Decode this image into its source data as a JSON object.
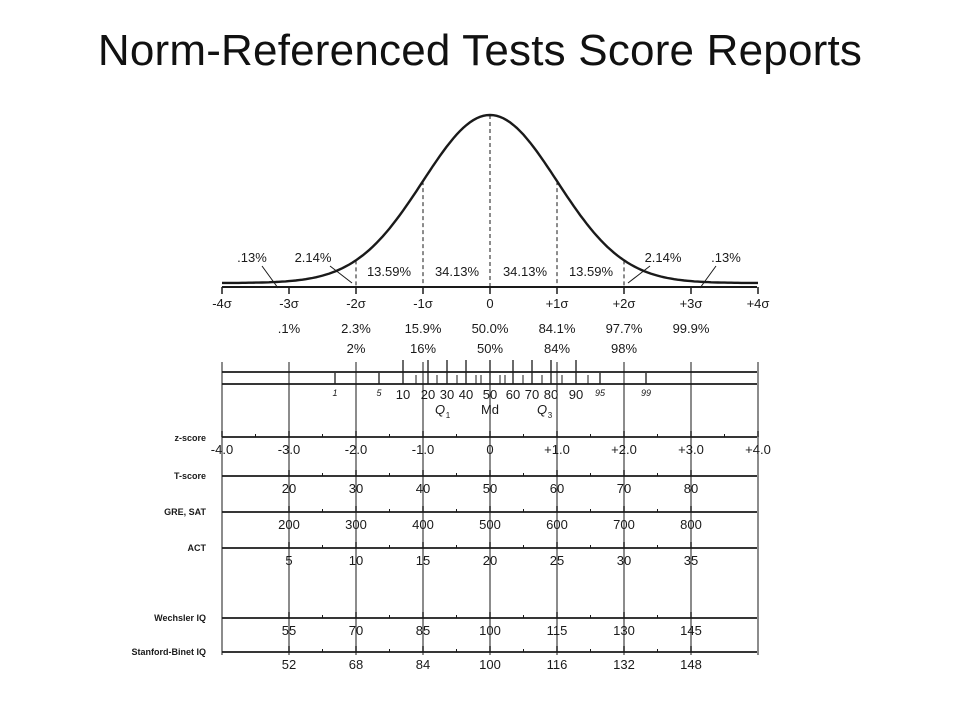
{
  "slide": {
    "title": "Norm-Referenced Tests Score Reports"
  },
  "curve": {
    "area_percents": [
      ".13%",
      "2.14%",
      "13.59%",
      "34.13%",
      "34.13%",
      "13.59%",
      "2.14%",
      ".13%"
    ],
    "sigma_labels": [
      "-4σ",
      "-3σ",
      "-2σ",
      "-1σ",
      "0",
      "+1σ",
      "+2σ",
      "+3σ",
      "+4σ"
    ],
    "cumulative_percent": [
      ".1%",
      "2.3%",
      "15.9%",
      "50.0%",
      "84.1%",
      "97.7%",
      "99.9%"
    ],
    "cumulative_rounded": [
      "2%",
      "16%",
      "50%",
      "84%",
      "98%"
    ]
  },
  "percentile_ruler": {
    "labels": [
      "1",
      "5",
      "10",
      "20",
      "30",
      "40",
      "50",
      "60",
      "70",
      "80",
      "90",
      "95",
      "99"
    ],
    "quartile_labels": [
      "Q",
      "Md",
      "Q"
    ],
    "quartile_subscripts": [
      "1",
      "3"
    ]
  },
  "scales": [
    {
      "name": "z-score",
      "values": [
        "-4.0",
        "-3.0",
        "-2.0",
        "-1.0",
        "0",
        "+1.0",
        "+2.0",
        "+3.0",
        "+4.0"
      ]
    },
    {
      "name": "T-score",
      "values": [
        "20",
        "30",
        "40",
        "50",
        "60",
        "70",
        "80"
      ]
    },
    {
      "name": "GRE, SAT",
      "values": [
        "200",
        "300",
        "400",
        "500",
        "600",
        "700",
        "800"
      ]
    },
    {
      "name": "ACT",
      "values": [
        "5",
        "10",
        "15",
        "20",
        "25",
        "30",
        "35"
      ]
    },
    {
      "name": "Wechsler  IQ",
      "values": [
        "55",
        "70",
        "85",
        "100",
        "115",
        "130",
        "145"
      ]
    },
    {
      "name": "Stanford-Binet IQ",
      "values": [
        "52",
        "68",
        "84",
        "100",
        "116",
        "132",
        "148"
      ]
    }
  ]
}
